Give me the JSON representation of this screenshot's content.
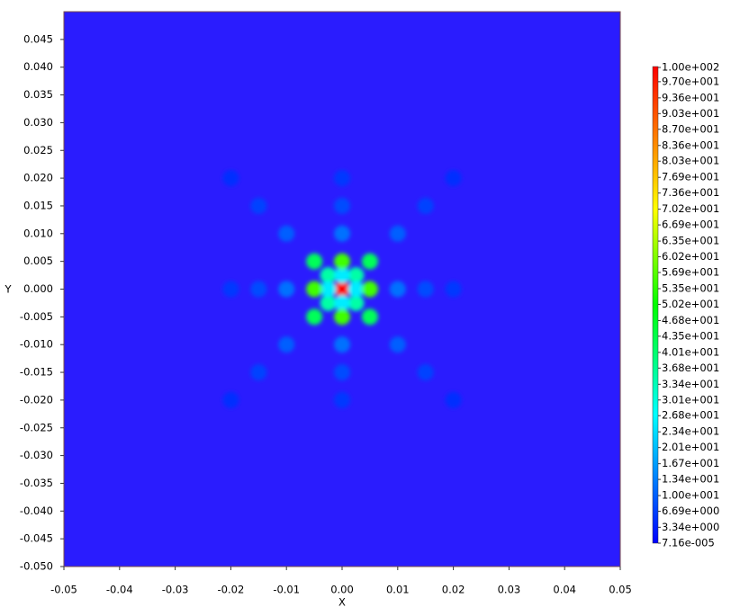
{
  "chart_data": {
    "type": "heatmap",
    "xlabel": "X",
    "ylabel": "Y",
    "xlim": [
      -0.05,
      0.05
    ],
    "ylim": [
      -0.05,
      0.05
    ],
    "xticks": [
      -0.05,
      -0.04,
      -0.03,
      -0.02,
      -0.01,
      {
        "value": 0,
        "label": "0.00"
      },
      0.01,
      0.02,
      0.03,
      0.04,
      0.05
    ],
    "yticks": [
      {
        "value": -0.05,
        "label": "-0.050"
      },
      -0.045,
      {
        "value": -0.04,
        "label": "-0.040"
      },
      -0.035,
      {
        "value": -0.03,
        "label": "-0.030"
      },
      -0.025,
      {
        "value": -0.02,
        "label": "-0.020"
      },
      -0.015,
      {
        "value": -0.01,
        "label": "-0.010"
      },
      -0.005,
      {
        "value": 0,
        "label": "0.000"
      },
      0.005,
      {
        "value": 0.01,
        "label": "0.010"
      },
      0.015,
      {
        "value": 0.02,
        "label": "0.020"
      },
      0.025,
      {
        "value": 0.03,
        "label": "0.030"
      },
      0.035,
      {
        "value": 0.04,
        "label": "0.040"
      },
      0.045
    ],
    "clim": [
      7.16e-05,
      100
    ],
    "cticks": [
      {
        "value": 100,
        "label": "1.00e+002"
      },
      {
        "value": 97.0,
        "label": "9.70e+001"
      },
      {
        "value": 93.6,
        "label": "9.36e+001"
      },
      {
        "value": 90.3,
        "label": "9.03e+001"
      },
      {
        "value": 87.0,
        "label": "8.70e+001"
      },
      {
        "value": 83.6,
        "label": "8.36e+001"
      },
      {
        "value": 80.3,
        "label": "8.03e+001"
      },
      {
        "value": 76.9,
        "label": "7.69e+001"
      },
      {
        "value": 73.6,
        "label": "7.36e+001"
      },
      {
        "value": 70.2,
        "label": "7.02e+001"
      },
      {
        "value": 66.9,
        "label": "6.69e+001"
      },
      {
        "value": 63.5,
        "label": "6.35e+001"
      },
      {
        "value": 60.2,
        "label": "6.02e+001"
      },
      {
        "value": 56.9,
        "label": "5.69e+001"
      },
      {
        "value": 53.5,
        "label": "5.35e+001"
      },
      {
        "value": 50.2,
        "label": "5.02e+001"
      },
      {
        "value": 46.8,
        "label": "4.68e+001"
      },
      {
        "value": 43.5,
        "label": "4.35e+001"
      },
      {
        "value": 40.1,
        "label": "4.01e+001"
      },
      {
        "value": 36.8,
        "label": "3.68e+001"
      },
      {
        "value": 33.4,
        "label": "3.34e+001"
      },
      {
        "value": 30.1,
        "label": "3.01e+001"
      },
      {
        "value": 26.8,
        "label": "2.68e+001"
      },
      {
        "value": 23.4,
        "label": "2.34e+001"
      },
      {
        "value": 20.1,
        "label": "2.01e+001"
      },
      {
        "value": 16.7,
        "label": "1.67e+001"
      },
      {
        "value": 13.4,
        "label": "1.34e+001"
      },
      {
        "value": 10.0,
        "label": "1.00e+001"
      },
      {
        "value": 6.69,
        "label": "6.69e+000"
      },
      {
        "value": 3.34,
        "label": "3.34e+000"
      },
      {
        "value": 7.16e-05,
        "label": "7.16e-005"
      }
    ],
    "points": {
      "x": [
        0,
        0.0025,
        -0.0025,
        0.0025,
        -0.0025,
        0.0025,
        -0.0025,
        0,
        0,
        0.005,
        -0.005,
        0,
        0,
        0.005,
        -0.005,
        0.005,
        -0.005,
        0.01,
        -0.01,
        0,
        0,
        0.01,
        -0.01,
        0.01,
        -0.01,
        0.015,
        -0.015,
        0,
        0,
        0.015,
        -0.015,
        0.015,
        -0.015,
        0.02,
        -0.02,
        0,
        0,
        0.02,
        -0.02,
        0.02,
        -0.02
      ],
      "y": [
        0,
        0.0025,
        0.0025,
        -0.0025,
        -0.0025,
        0,
        0,
        0.0025,
        -0.0025,
        0,
        0,
        0.005,
        -0.005,
        0.005,
        0.005,
        -0.005,
        -0.005,
        0,
        0,
        0.01,
        -0.01,
        0.01,
        0.01,
        -0.01,
        -0.01,
        0,
        0,
        0.015,
        -0.015,
        0.015,
        0.015,
        -0.015,
        -0.015,
        0,
        0,
        0.02,
        -0.02,
        0.02,
        0.02,
        -0.02,
        -0.02
      ],
      "values": [
        100,
        35,
        35,
        35,
        35,
        25,
        25,
        25,
        25,
        55,
        55,
        55,
        55,
        42,
        42,
        42,
        42,
        12,
        12,
        12,
        12,
        10,
        10,
        10,
        10,
        8,
        8,
        8,
        8,
        7,
        7,
        7,
        7,
        6,
        6,
        6,
        6,
        5,
        5,
        5,
        5
      ]
    }
  }
}
